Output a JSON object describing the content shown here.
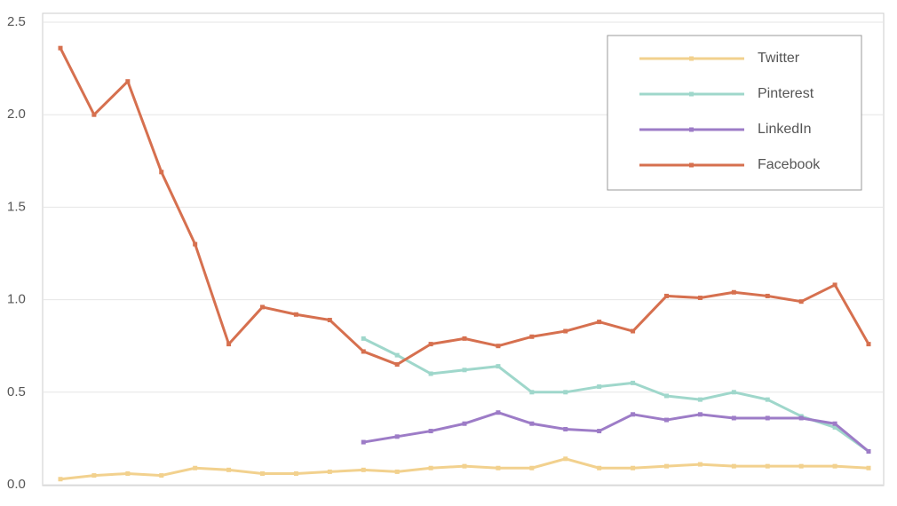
{
  "chart_data": {
    "type": "line",
    "categories": [
      null,
      null,
      null,
      null,
      null,
      null,
      null,
      null,
      null,
      null,
      null,
      null,
      null,
      null,
      null,
      null,
      null,
      null,
      null,
      null,
      null,
      null,
      null,
      null,
      null
    ],
    "series": [
      {
        "name": "Twitter",
        "color": "#f2d18e",
        "values": [
          0.03,
          0.05,
          0.06,
          0.05,
          0.09,
          0.08,
          0.06,
          0.06,
          0.07,
          0.08,
          0.07,
          0.09,
          0.1,
          0.09,
          0.09,
          0.14,
          0.09,
          0.09,
          0.1,
          0.11,
          0.1,
          0.1,
          0.1,
          0.1,
          0.09
        ]
      },
      {
        "name": "Pinterest",
        "color": "#9fd7cb",
        "values": [
          null,
          null,
          null,
          null,
          null,
          null,
          null,
          null,
          null,
          0.79,
          0.7,
          0.6,
          0.62,
          0.64,
          0.5,
          0.5,
          0.53,
          0.55,
          0.48,
          0.46,
          0.5,
          0.46,
          0.37,
          0.31,
          0.18
        ]
      },
      {
        "name": "LinkedIn",
        "color": "#9d7cc7",
        "values": [
          null,
          null,
          null,
          null,
          null,
          null,
          null,
          null,
          null,
          0.23,
          0.26,
          0.29,
          0.33,
          0.39,
          0.33,
          0.3,
          0.29,
          0.38,
          0.35,
          0.38,
          0.36,
          0.36,
          0.36,
          0.33,
          0.18
        ]
      },
      {
        "name": "Facebook",
        "color": "#d6704f",
        "values": [
          2.36,
          2.0,
          2.18,
          1.69,
          1.3,
          0.76,
          0.96,
          0.92,
          0.89,
          0.72,
          0.65,
          0.76,
          0.79,
          0.75,
          0.8,
          0.83,
          0.88,
          0.83,
          1.02,
          1.01,
          1.04,
          1.02,
          0.99,
          1.08,
          0.76
        ]
      }
    ],
    "ylim": [
      0,
      2.5
    ],
    "yticks": [
      {
        "value": 0,
        "label": "0.0"
      },
      0.5,
      {
        "value": 1,
        "label": "1.0"
      },
      1.5,
      {
        "value": 2,
        "label": "2.0"
      },
      2.5
    ],
    "grid": true,
    "legend": "upper right"
  }
}
